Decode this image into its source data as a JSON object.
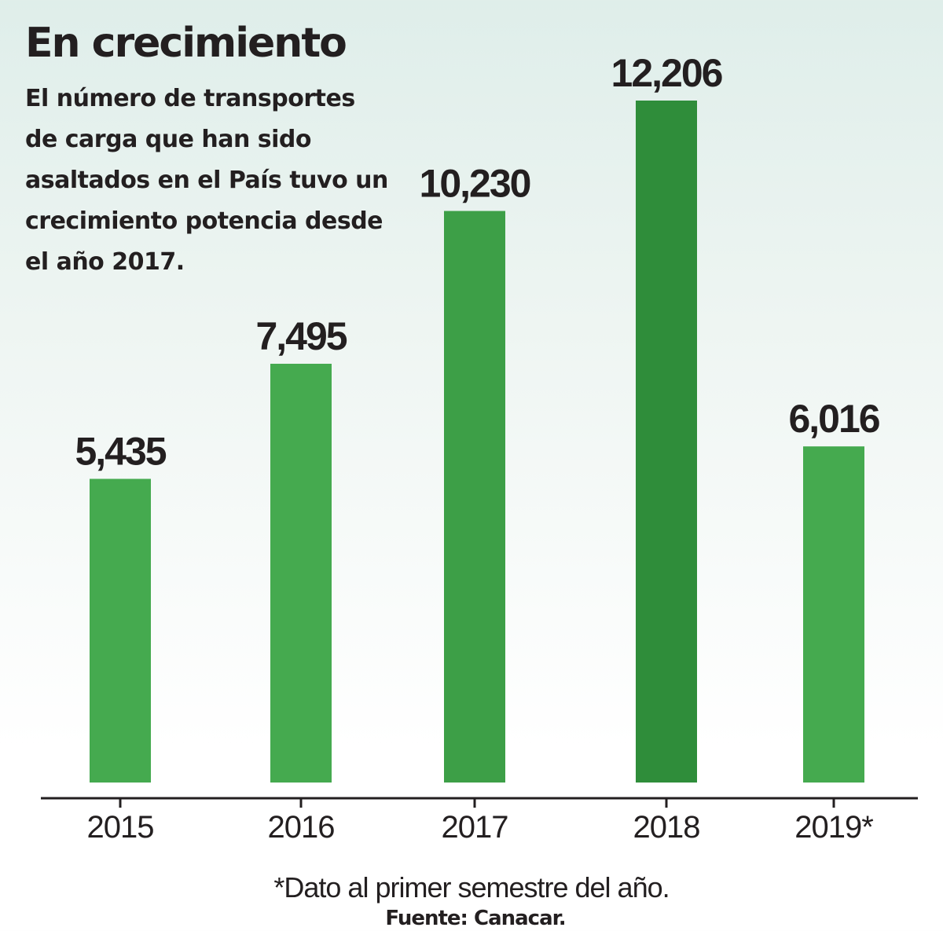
{
  "chart_data": {
    "type": "bar",
    "title": "En crecimiento",
    "subtitle": "El número de transportes de carga que han sido asaltados en el País tuvo un crecimiento potencia desde el año 2017.",
    "categories": [
      "2015",
      "2016",
      "2017",
      "2018",
      "2019*"
    ],
    "values": [
      5435,
      7495,
      10230,
      12206,
      6016
    ],
    "value_labels": [
      "5,435",
      "7,495",
      "10,230",
      "12,206",
      "6,016"
    ],
    "bar_colors": [
      "#45aa4f",
      "#45aa4f",
      "#3d9f47",
      "#2f8d3a",
      "#45aa4f"
    ],
    "ylim": [
      0,
      12206
    ],
    "xlabel": "",
    "ylabel": "",
    "grid": false,
    "legend": "none",
    "footnote": "*Dato al primer semestre del año.",
    "source": "Fuente: Canacar."
  },
  "colors": {
    "axis": "#231f20",
    "text": "#231f20"
  }
}
